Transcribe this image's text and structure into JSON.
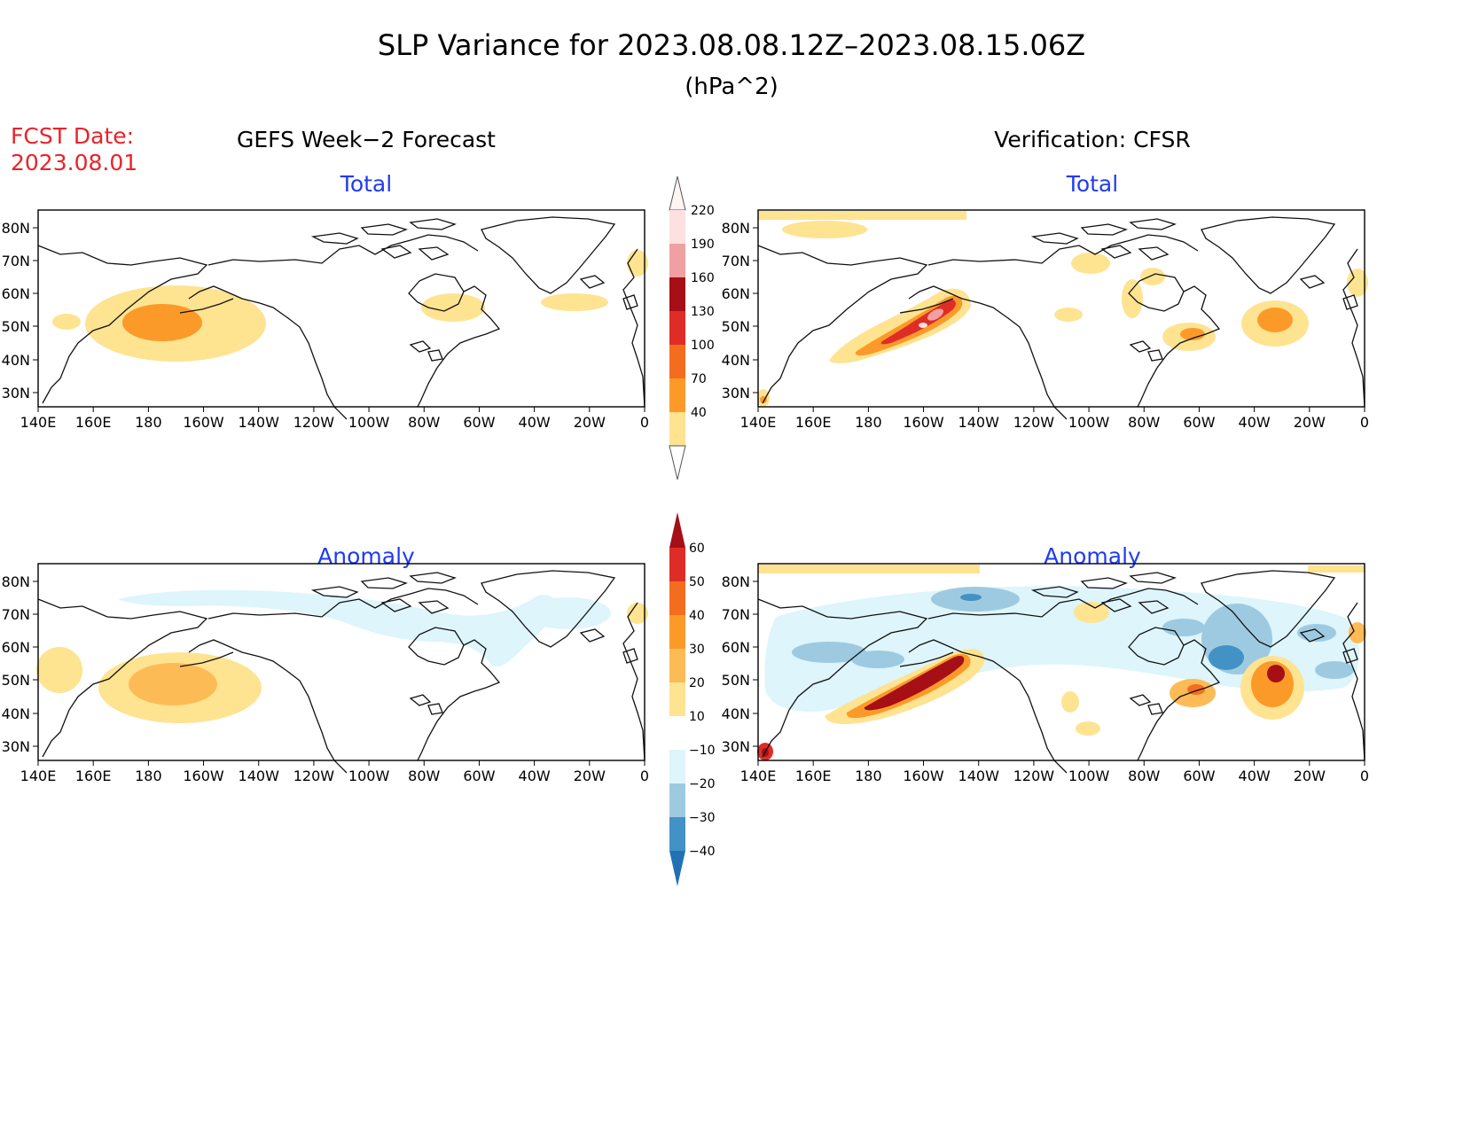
{
  "title": "SLP Variance for 2023.08.08.12Z–2023.08.15.06Z",
  "units": "(hPa^2)",
  "fcst_date_label": "FCST Date:",
  "fcst_date_value": "2023.08.01",
  "left_column_title": "GEFS Week−2 Forecast",
  "right_column_title": "Verification: CFSR",
  "panel_titles": {
    "total": "Total",
    "anomaly": "Anomaly"
  },
  "lat_labels": [
    "80N",
    "70N",
    "60N",
    "50N",
    "40N",
    "30N"
  ],
  "lon_labels": [
    "140E",
    "160E",
    "180",
    "160W",
    "140W",
    "120W",
    "100W",
    "80W",
    "60W",
    "40W",
    "20W",
    "0"
  ],
  "total_colorbar": {
    "labels": [
      "220",
      "190",
      "160",
      "130",
      "100",
      "70",
      "40"
    ],
    "colors": [
      "#fde0e0",
      "#f0a0a0",
      "#a50f15",
      "#de2d26",
      "#f46d1e",
      "#fb9a29",
      "#fee391"
    ]
  },
  "anomaly_colorbar": {
    "labels": [
      "60",
      "50",
      "40",
      "30",
      "20",
      "10",
      "−10",
      "−20",
      "−30",
      "−40"
    ],
    "colors": [
      "#a50f15",
      "#de2d26",
      "#f46d1e",
      "#fb9a29",
      "#fdbb56",
      "#fee391",
      "#ffffff",
      "#ddf5fb",
      "#9ecae1",
      "#4292c6",
      "#2171b5"
    ]
  }
}
